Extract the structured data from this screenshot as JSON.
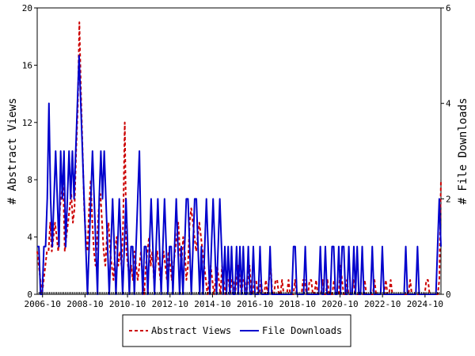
{
  "chart_data": {
    "type": "line",
    "title": "",
    "xlabel": "",
    "ylabel_left": "# Abstract Views",
    "ylabel_right": "# File Downloads",
    "x_start": "2006-07",
    "x_end": "2025-07",
    "x_tick_labels": [
      "2006-10",
      "2008-10",
      "2010-10",
      "2012-10",
      "2014-10",
      "2016-10",
      "2018-10",
      "2020-10",
      "2022-10",
      "2024-10"
    ],
    "ylim_left": [
      0,
      20
    ],
    "yticks_left": [
      0,
      4,
      8,
      12,
      16,
      20
    ],
    "ylim_right": [
      0,
      6
    ],
    "yticks_right": [
      0,
      2,
      4,
      6
    ],
    "legend_position": "bottom",
    "grid": false,
    "series": [
      {
        "name": "Abstract Views",
        "axis": "left",
        "color": "#cc0000",
        "style": "dashed",
        "values": [
          3,
          2,
          1,
          0,
          1,
          2,
          3,
          3,
          5,
          3,
          4,
          5,
          4,
          3,
          6,
          7,
          8,
          3,
          4,
          5,
          6,
          7,
          5,
          6,
          10,
          13,
          19,
          14,
          10,
          6,
          4,
          3,
          6,
          8,
          5,
          3,
          2,
          4,
          6,
          7,
          5,
          3,
          2,
          4,
          5,
          3,
          2,
          1,
          3,
          4,
          2,
          3,
          2,
          5,
          12,
          3,
          2,
          1,
          2,
          1,
          3,
          2,
          1,
          2,
          3,
          1,
          0,
          2,
          3,
          4,
          2,
          3,
          1,
          2,
          3,
          2,
          1,
          2,
          3,
          2,
          1,
          3,
          2,
          1,
          2,
          3,
          4,
          5,
          3,
          2,
          4,
          3,
          1,
          2,
          5,
          6,
          5,
          4,
          3,
          4,
          5,
          4,
          3,
          2,
          1,
          0,
          1,
          2,
          1,
          0,
          1,
          2,
          1,
          0,
          2,
          1,
          0,
          1,
          1,
          0,
          1,
          1,
          0,
          1,
          2,
          1,
          0,
          1,
          1,
          0,
          1,
          2,
          0,
          0,
          1,
          1,
          0,
          0,
          1,
          0,
          0,
          1,
          0,
          1,
          2,
          0,
          0,
          1,
          1,
          0,
          0,
          1,
          0,
          0,
          0,
          1,
          0,
          0,
          0,
          1,
          0,
          0,
          0,
          0,
          1,
          1,
          0,
          0,
          1,
          1,
          0,
          0,
          1,
          0,
          0,
          0,
          1,
          0,
          0,
          1,
          0,
          0,
          0,
          1,
          0,
          0,
          0,
          2,
          1,
          0,
          0,
          1,
          0,
          0,
          0,
          1,
          0,
          0,
          0,
          0,
          0,
          0,
          1,
          0,
          0,
          0,
          0,
          0,
          1,
          0,
          0,
          0,
          0,
          0,
          0,
          1,
          0,
          0,
          1,
          0,
          0,
          0,
          0,
          0,
          0,
          0,
          0,
          0,
          0,
          0,
          1,
          0,
          0,
          0,
          0,
          0,
          0,
          0,
          0,
          0,
          1,
          1,
          0,
          0,
          0,
          0,
          0,
          0,
          1,
          8
        ]
      },
      {
        "name": "File Downloads",
        "axis": "right",
        "color": "#0000cc",
        "style": "solid",
        "values": [
          1,
          1,
          0,
          0,
          1,
          1,
          2,
          4,
          2,
          1,
          2,
          3,
          2,
          1,
          3,
          2,
          3,
          1,
          2,
          3,
          2,
          3,
          2,
          3,
          4,
          5,
          4,
          3,
          2,
          1,
          0,
          1,
          2,
          3,
          2,
          1,
          0,
          2,
          3,
          2,
          3,
          2,
          1,
          0,
          1,
          2,
          1,
          0,
          1,
          2,
          1,
          0,
          1,
          2,
          1,
          0,
          1,
          1,
          0,
          1,
          2,
          3,
          1,
          0,
          1,
          1,
          0,
          1,
          2,
          1,
          0,
          1,
          2,
          1,
          0,
          1,
          2,
          1,
          0,
          1,
          1,
          0,
          1,
          2,
          1,
          0,
          1,
          0,
          1,
          2,
          2,
          1,
          0,
          1,
          2,
          2,
          1,
          0,
          1,
          0,
          1,
          2,
          1,
          0,
          1,
          2,
          1,
          0,
          1,
          2,
          1,
          0,
          1,
          0,
          1,
          0,
          1,
          0,
          0,
          1,
          0,
          1,
          0,
          1,
          0,
          0,
          1,
          0,
          0,
          1,
          0,
          0,
          0,
          1,
          0,
          0,
          0,
          0,
          0,
          1,
          0,
          0,
          0,
          0,
          0,
          0,
          0,
          0,
          0,
          0,
          0,
          0,
          0,
          1,
          1,
          0,
          0,
          0,
          0,
          0,
          1,
          0,
          0,
          0,
          0,
          0,
          0,
          0,
          0,
          1,
          0,
          0,
          1,
          0,
          0,
          0,
          1,
          1,
          0,
          0,
          1,
          0,
          1,
          1,
          0,
          0,
          1,
          0,
          0,
          1,
          0,
          1,
          0,
          0,
          1,
          0,
          0,
          0,
          0,
          0,
          1,
          0,
          0,
          0,
          0,
          0,
          1,
          0,
          0,
          0,
          0,
          0,
          0,
          0,
          0,
          0,
          0,
          0,
          0,
          0,
          1,
          0,
          0,
          0,
          0,
          0,
          0,
          1,
          0,
          0,
          0,
          0,
          0,
          0,
          0,
          0,
          0,
          0,
          0,
          1,
          2,
          1
        ]
      }
    ]
  }
}
